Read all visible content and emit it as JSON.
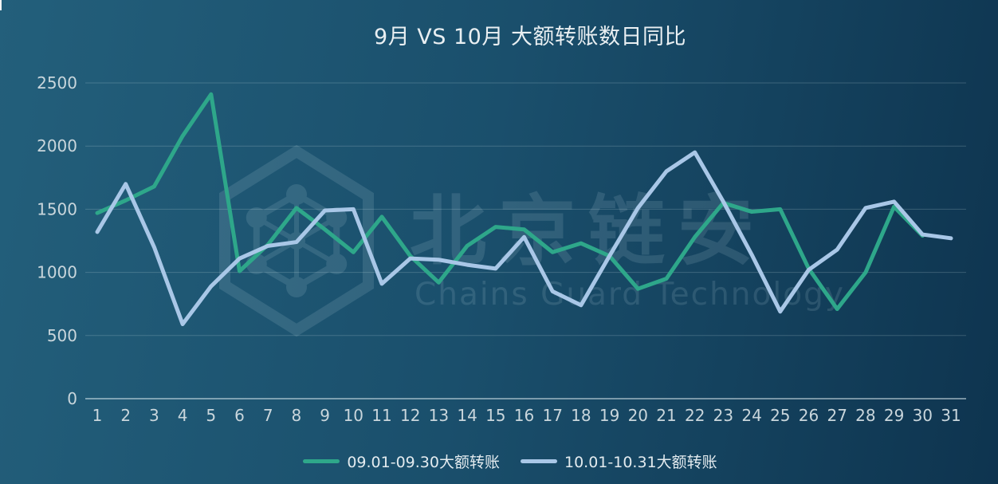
{
  "watermark": {
    "brand": "北京链安",
    "subtitle": "Chains Guard Technology",
    "logo": "hexagon-shield-network-icon",
    "color": "#cfe6ee"
  },
  "axis": {
    "label_color": "#c9d6dc",
    "grid_color": "rgba(223,238,242,0.20)",
    "baseline_color": "rgba(223,238,242,0.50)"
  },
  "chart_data": {
    "type": "line",
    "title": "9月 VS 10月 大额转账数日同比",
    "categories": [
      "1",
      "2",
      "3",
      "4",
      "5",
      "6",
      "7",
      "8",
      "9",
      "10",
      "11",
      "12",
      "13",
      "14",
      "15",
      "16",
      "17",
      "18",
      "19",
      "20",
      "21",
      "22",
      "23",
      "24",
      "25",
      "26",
      "27",
      "28",
      "29",
      "30",
      "31"
    ],
    "series": [
      {
        "name": "09.01-09.30大额转账",
        "color": "#2ea78a",
        "values": [
          1470,
          1570,
          1680,
          2080,
          2410,
          1010,
          1220,
          1510,
          1340,
          1160,
          1440,
          1130,
          920,
          1210,
          1360,
          1340,
          1160,
          1230,
          1130,
          870,
          950,
          1280,
          1550,
          1480,
          1500,
          1030,
          710,
          1000,
          1520,
          1290
        ]
      },
      {
        "name": "10.01-10.31大额转账",
        "color": "#a9c7e7",
        "values": [
          1320,
          1700,
          1200,
          590,
          890,
          1110,
          1210,
          1240,
          1490,
          1500,
          910,
          1110,
          1100,
          1060,
          1030,
          1280,
          850,
          740,
          1130,
          1510,
          1800,
          1950,
          1560,
          1140,
          690,
          1020,
          1180,
          1510,
          1560,
          1300,
          1270
        ]
      }
    ],
    "xlabel": "",
    "ylabel": "",
    "ylim": [
      0,
      2500
    ],
    "y_ticks": [
      0,
      500,
      1000,
      1500,
      2000,
      2500
    ],
    "grid": "horizontal",
    "legend_position": "bottom",
    "smooth": false
  }
}
